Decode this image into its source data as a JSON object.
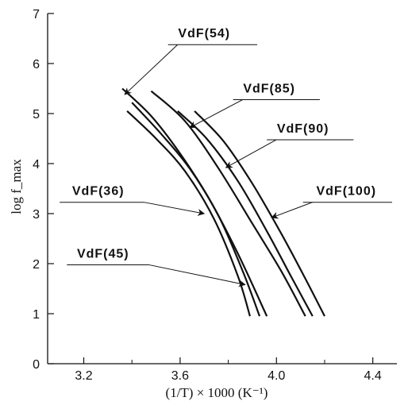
{
  "chart_data": {
    "type": "line",
    "xlabel": "(1/T) × 1000 (K⁻¹)",
    "ylabel": "log f_max",
    "xlim": [
      3.05,
      4.5
    ],
    "ylim": [
      0,
      7
    ],
    "x_ticks": [
      "3.2",
      "3.6",
      "4.0",
      "4.4"
    ],
    "x_tick_values": [
      3.2,
      3.6,
      4.0,
      4.4
    ],
    "y_ticks": [
      "0",
      "1",
      "2",
      "3",
      "4",
      "5",
      "6",
      "7"
    ],
    "y_tick_values": [
      0,
      1,
      2,
      3,
      4,
      5,
      6,
      7
    ],
    "grid": false,
    "series": [
      {
        "name": "VdF(36)",
        "x": [
          3.38,
          3.5,
          3.62,
          3.74,
          3.84,
          3.89
        ],
        "y": [
          5.05,
          4.5,
          3.85,
          2.9,
          1.75,
          0.95
        ]
      },
      {
        "name": "VdF(45)",
        "x": [
          3.4,
          3.52,
          3.64,
          3.76,
          3.86,
          3.93
        ],
        "y": [
          5.22,
          4.6,
          3.9,
          2.95,
          1.85,
          0.95
        ]
      },
      {
        "name": "VdF(54)",
        "x": [
          3.36,
          3.48,
          3.6,
          3.72,
          3.84,
          3.96
        ],
        "y": [
          5.5,
          4.95,
          4.2,
          3.3,
          2.2,
          0.95
        ]
      },
      {
        "name": "VdF(85)",
        "x": [
          3.48,
          3.62,
          3.76,
          3.9,
          4.02,
          4.12
        ],
        "y": [
          5.45,
          4.85,
          3.9,
          2.8,
          1.85,
          0.95
        ]
      },
      {
        "name": "VdF(90)",
        "x": [
          3.59,
          3.71,
          3.84,
          3.96,
          4.06,
          4.15
        ],
        "y": [
          5.05,
          4.5,
          3.65,
          2.65,
          1.75,
          0.95
        ]
      },
      {
        "name": "VdF(100)",
        "x": [
          3.66,
          3.78,
          3.9,
          4.02,
          4.12,
          4.2
        ],
        "y": [
          5.05,
          4.45,
          3.6,
          2.6,
          1.7,
          0.95
        ]
      }
    ],
    "annotations": [
      {
        "text": "VdF(54)",
        "series": "VdF(54)",
        "tx": 3.7,
        "ty": 6.52,
        "ax": 3.37,
        "ay": 5.38,
        "lx0": 3.55,
        "lx1": 3.92
      },
      {
        "text": "VdF(85)",
        "series": "VdF(85)",
        "tx": 3.97,
        "ty": 5.42,
        "ax": 3.64,
        "ay": 4.72,
        "lx0": 3.82,
        "lx1": 4.18
      },
      {
        "text": "VdF(90)",
        "series": "VdF(90)",
        "tx": 4.11,
        "ty": 4.62,
        "ax": 3.79,
        "ay": 3.92,
        "lx0": 3.96,
        "lx1": 4.32
      },
      {
        "text": "VdF(36)",
        "series": "VdF(36)",
        "tx": 3.26,
        "ty": 3.37,
        "ax": 3.7,
        "ay": 3.0,
        "lx0": 3.1,
        "lx1": 3.45
      },
      {
        "text": "VdF(100)",
        "series": "VdF(100)",
        "tx": 4.29,
        "ty": 3.37,
        "ax": 3.98,
        "ay": 2.92,
        "lx0": 4.11,
        "lx1": 4.48
      },
      {
        "text": "VdF(45)",
        "series": "VdF(45)",
        "tx": 3.28,
        "ty": 2.12,
        "ax": 3.87,
        "ay": 1.58,
        "lx0": 3.13,
        "lx1": 3.47
      }
    ]
  }
}
